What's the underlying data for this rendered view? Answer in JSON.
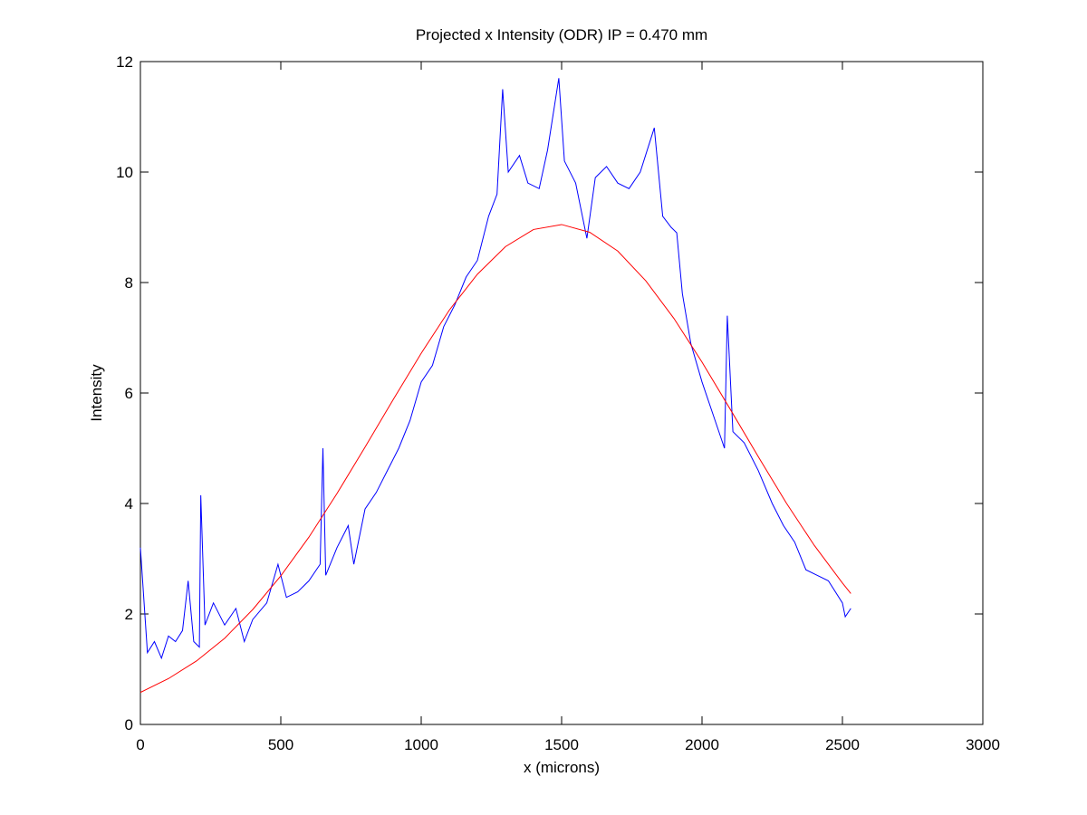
{
  "chart_data": {
    "type": "line",
    "title": "Projected x Intensity (ODR) IP = 0.470 mm",
    "x_label": "x (microns)",
    "y_label": "Intensity",
    "xlim": [
      0,
      3000
    ],
    "ylim": [
      0,
      12
    ],
    "xticks": [
      0,
      500,
      1000,
      1500,
      2000,
      2500,
      3000
    ],
    "yticks": [
      0,
      2,
      4,
      6,
      8,
      10,
      12
    ],
    "grid": false,
    "series": [
      {
        "color": "#0000ff",
        "x": [
          0,
          25,
          50,
          75,
          100,
          125,
          150,
          170,
          190,
          210,
          215,
          230,
          260,
          300,
          340,
          370,
          400,
          450,
          490,
          520,
          560,
          600,
          640,
          650,
          660,
          700,
          740,
          760,
          800,
          840,
          880,
          920,
          960,
          1000,
          1040,
          1080,
          1120,
          1160,
          1200,
          1240,
          1270,
          1290,
          1310,
          1350,
          1380,
          1420,
          1450,
          1490,
          1510,
          1550,
          1590,
          1620,
          1660,
          1700,
          1740,
          1780,
          1830,
          1860,
          1890,
          1910,
          1930,
          1960,
          2000,
          2040,
          2080,
          2090,
          2110,
          2150,
          2200,
          2250,
          2290,
          2330,
          2370,
          2410,
          2450,
          2500,
          2510,
          2530
        ],
        "values": [
          3.2,
          1.3,
          1.5,
          1.2,
          1.6,
          1.5,
          1.7,
          2.6,
          1.5,
          1.4,
          4.15,
          1.8,
          2.2,
          1.8,
          2.1,
          1.5,
          1.9,
          2.2,
          2.9,
          2.3,
          2.4,
          2.6,
          2.9,
          5.0,
          2.7,
          3.2,
          3.6,
          2.9,
          3.9,
          4.2,
          4.6,
          5.0,
          5.5,
          6.2,
          6.5,
          7.2,
          7.6,
          8.1,
          8.4,
          9.2,
          9.6,
          11.5,
          10.0,
          10.3,
          9.8,
          9.7,
          10.4,
          11.7,
          10.2,
          9.8,
          8.8,
          9.9,
          10.1,
          9.8,
          9.7,
          10.0,
          10.8,
          9.2,
          9.0,
          8.9,
          7.8,
          6.9,
          6.2,
          5.6,
          5.0,
          7.4,
          5.3,
          5.1,
          4.6,
          4.0,
          3.6,
          3.3,
          2.8,
          2.7,
          2.6,
          2.2,
          1.95,
          2.1
        ]
      },
      {
        "color": "#ff0000",
        "x": [
          0,
          100,
          200,
          300,
          400,
          500,
          600,
          700,
          800,
          900,
          1000,
          1100,
          1200,
          1300,
          1400,
          1500,
          1600,
          1700,
          1800,
          1900,
          2000,
          2100,
          2200,
          2300,
          2400,
          2500,
          2530
        ],
        "values": [
          0.58,
          0.83,
          1.15,
          1.56,
          2.08,
          2.69,
          3.39,
          4.18,
          5.02,
          5.88,
          6.72,
          7.5,
          8.15,
          8.65,
          8.96,
          9.05,
          8.91,
          8.57,
          8.03,
          7.35,
          6.56,
          5.71,
          4.85,
          4.01,
          3.24,
          2.56,
          2.37
        ]
      }
    ]
  }
}
